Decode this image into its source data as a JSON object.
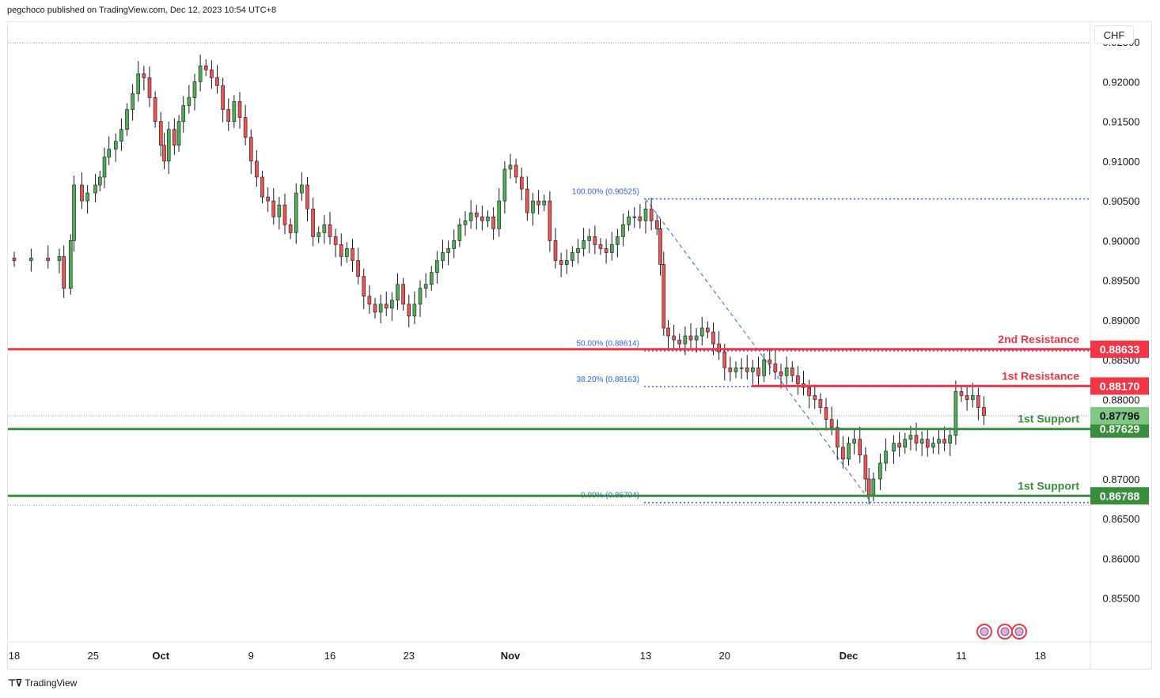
{
  "header": {
    "published": "pegchoco published on TradingView.com, Dec 12, 2023 10:54 UTC+8"
  },
  "currency": "CHF",
  "brand": {
    "label": "TradingView"
  },
  "colors": {
    "up": "#4caf50",
    "down": "#ef5350",
    "resistance": "#f23645",
    "support": "#388e3c",
    "fib": "#2962ff",
    "fibText": "#2962ff",
    "grid": "#e0e3eb",
    "last": "#81c784"
  },
  "chart_data": {
    "type": "candlestick",
    "ylim": [
      0.8495,
      0.9275
    ],
    "y_ticks": [
      "0.92500",
      "0.92000",
      "0.91500",
      "0.91000",
      "0.90500",
      "0.90000",
      "0.89500",
      "0.89000",
      "0.88500",
      "0.88000",
      "0.87000",
      "0.86500",
      "0.86000",
      "0.85500"
    ],
    "x_ticks": [
      {
        "label": "18",
        "day": 0,
        "bold": false
      },
      {
        "label": "25",
        "day": 7,
        "bold": false
      },
      {
        "label": "Oct",
        "day": 13,
        "bold": true
      },
      {
        "label": "9",
        "day": 21,
        "bold": false
      },
      {
        "label": "16",
        "day": 28,
        "bold": false
      },
      {
        "label": "23",
        "day": 35,
        "bold": false
      },
      {
        "label": "Nov",
        "day": 44,
        "bold": true
      },
      {
        "label": "13",
        "day": 56,
        "bold": false
      },
      {
        "label": "20",
        "day": 63,
        "bold": false
      },
      {
        "label": "Dec",
        "day": 74,
        "bold": true
      },
      {
        "label": "11",
        "day": 84,
        "bold": false
      },
      {
        "label": "18",
        "day": 91,
        "bold": false
      }
    ],
    "closes": [
      [
        0,
        0.8975
      ],
      [
        1.5,
        0.8978
      ],
      [
        3,
        0.8975
      ],
      [
        4,
        0.898
      ],
      [
        4.4,
        0.894
      ],
      [
        5,
        0.9
      ],
      [
        5.3,
        0.907
      ],
      [
        6,
        0.905
      ],
      [
        6.5,
        0.906
      ],
      [
        7.2,
        0.907
      ],
      [
        7.6,
        0.908
      ],
      [
        8,
        0.9105
      ],
      [
        8.4,
        0.9115
      ],
      [
        9,
        0.9125
      ],
      [
        9.5,
        0.914
      ],
      [
        10,
        0.9165
      ],
      [
        10.5,
        0.9185
      ],
      [
        11,
        0.921
      ],
      [
        11.5,
        0.9205
      ],
      [
        12,
        0.918
      ],
      [
        12.5,
        0.915
      ],
      [
        13,
        0.912
      ],
      [
        13.3,
        0.91
      ],
      [
        13.7,
        0.914
      ],
      [
        14.2,
        0.912
      ],
      [
        14.6,
        0.915
      ],
      [
        15,
        0.917
      ],
      [
        15.5,
        0.918
      ],
      [
        16,
        0.92
      ],
      [
        16.5,
        0.922
      ],
      [
        17,
        0.9215
      ],
      [
        17.5,
        0.9205
      ],
      [
        18,
        0.9195
      ],
      [
        18.5,
        0.9165
      ],
      [
        19,
        0.915
      ],
      [
        19.5,
        0.9175
      ],
      [
        20,
        0.9155
      ],
      [
        20.5,
        0.913
      ],
      [
        21,
        0.91
      ],
      [
        21.5,
        0.908
      ],
      [
        22,
        0.9055
      ],
      [
        22.5,
        0.905
      ],
      [
        23,
        0.903
      ],
      [
        23.5,
        0.9045
      ],
      [
        24,
        0.902
      ],
      [
        24.5,
        0.901
      ],
      [
        25,
        0.906
      ],
      [
        25.5,
        0.907
      ],
      [
        26,
        0.904
      ],
      [
        26.5,
        0.9005
      ],
      [
        27,
        0.901
      ],
      [
        27.5,
        0.902
      ],
      [
        28,
        0.9005
      ],
      [
        28.5,
        0.8995
      ],
      [
        29,
        0.898
      ],
      [
        29.5,
        0.899
      ],
      [
        30,
        0.8975
      ],
      [
        30.5,
        0.8955
      ],
      [
        31,
        0.893
      ],
      [
        31.5,
        0.892
      ],
      [
        32,
        0.891
      ],
      [
        32.5,
        0.892
      ],
      [
        33,
        0.8915
      ],
      [
        33.5,
        0.8925
      ],
      [
        34,
        0.8945
      ],
      [
        34.5,
        0.892
      ],
      [
        35,
        0.8905
      ],
      [
        35.5,
        0.892
      ],
      [
        36,
        0.894
      ],
      [
        36.5,
        0.8945
      ],
      [
        37,
        0.896
      ],
      [
        37.5,
        0.8975
      ],
      [
        38,
        0.8985
      ],
      [
        38.5,
        0.899
      ],
      [
        39,
        0.9
      ],
      [
        39.5,
        0.902
      ],
      [
        40,
        0.9025
      ],
      [
        40.5,
        0.9035
      ],
      [
        41,
        0.903
      ],
      [
        41.5,
        0.9025
      ],
      [
        42,
        0.903
      ],
      [
        42.5,
        0.9015
      ],
      [
        43,
        0.905
      ],
      [
        43.5,
        0.909
      ],
      [
        44,
        0.9095
      ],
      [
        44.5,
        0.908
      ],
      [
        45,
        0.9065
      ],
      [
        45.5,
        0.9035
      ],
      [
        46,
        0.905
      ],
      [
        46.5,
        0.9045
      ],
      [
        47,
        0.905
      ],
      [
        47.5,
        0.9
      ],
      [
        48,
        0.8975
      ],
      [
        48.5,
        0.897
      ],
      [
        49,
        0.8975
      ],
      [
        49.5,
        0.8985
      ],
      [
        50,
        0.899
      ],
      [
        50.5,
        0.9
      ],
      [
        51,
        0.9005
      ],
      [
        51.5,
        0.8995
      ],
      [
        52,
        0.899
      ],
      [
        52.5,
        0.8985
      ],
      [
        53,
        0.8995
      ],
      [
        53.5,
        0.9005
      ],
      [
        54,
        0.902
      ],
      [
        54.5,
        0.903
      ],
      [
        55,
        0.903
      ],
      [
        55.5,
        0.9025
      ],
      [
        56,
        0.904
      ],
      [
        56.5,
        0.9025
      ],
      [
        57,
        0.9015
      ],
      [
        57.3,
        0.897
      ],
      [
        57.6,
        0.889
      ],
      [
        58,
        0.888
      ],
      [
        58.5,
        0.8875
      ],
      [
        59,
        0.887
      ],
      [
        59.5,
        0.888
      ],
      [
        60,
        0.8875
      ],
      [
        60.5,
        0.888
      ],
      [
        61,
        0.889
      ],
      [
        61.5,
        0.8885
      ],
      [
        62,
        0.887
      ],
      [
        62.5,
        0.886
      ],
      [
        63,
        0.884
      ],
      [
        63.5,
        0.8835
      ],
      [
        64,
        0.884
      ],
      [
        64.5,
        0.884
      ],
      [
        65,
        0.8835
      ],
      [
        65.5,
        0.884
      ],
      [
        66,
        0.883
      ],
      [
        66.5,
        0.885
      ],
      [
        67,
        0.8845
      ],
      [
        67.5,
        0.8835
      ],
      [
        68,
        0.883
      ],
      [
        68.5,
        0.884
      ],
      [
        69,
        0.883
      ],
      [
        69.5,
        0.882
      ],
      [
        70,
        0.8815
      ],
      [
        70.5,
        0.8805
      ],
      [
        71,
        0.88
      ],
      [
        71.5,
        0.879
      ],
      [
        72,
        0.8775
      ],
      [
        72.5,
        0.8765
      ],
      [
        73,
        0.874
      ],
      [
        73.5,
        0.8725
      ],
      [
        74,
        0.8745
      ],
      [
        74.5,
        0.875
      ],
      [
        75,
        0.873
      ],
      [
        75.5,
        0.87
      ],
      [
        75.8,
        0.868
      ],
      [
        76.2,
        0.87
      ],
      [
        76.8,
        0.872
      ],
      [
        77.3,
        0.8735
      ],
      [
        78,
        0.8745
      ],
      [
        78.5,
        0.874
      ],
      [
        79,
        0.875
      ],
      [
        79.5,
        0.8755
      ],
      [
        80,
        0.8745
      ],
      [
        80.5,
        0.875
      ],
      [
        81,
        0.874
      ],
      [
        81.5,
        0.8745
      ],
      [
        82,
        0.875
      ],
      [
        82.5,
        0.8745
      ],
      [
        83,
        0.8755
      ],
      [
        83.5,
        0.881
      ],
      [
        84,
        0.8805
      ],
      [
        84.5,
        0.88
      ],
      [
        85,
        0.8805
      ],
      [
        85.5,
        0.879
      ],
      [
        86,
        0.878
      ]
    ],
    "levels": [
      {
        "name": "2nd Resistance",
        "value": 0.88633,
        "label": "0.88633",
        "color": "#f23645",
        "textColor": "#f23645"
      },
      {
        "name": "1st Resistance",
        "value": 0.8817,
        "label": "0.88170",
        "color": "#f23645",
        "textColor": "#f23645"
      },
      {
        "name": "1st Support",
        "value": 0.87629,
        "label": "0.87629",
        "color": "#388e3c",
        "textColor": "#388e3c"
      },
      {
        "name": "1st Support",
        "value": 0.86788,
        "label": "0.86788",
        "color": "#388e3c",
        "textColor": "#388e3c"
      }
    ],
    "last_price": {
      "value": 0.87796,
      "label": "0.87796"
    },
    "fibs": [
      {
        "label": "100.00% (0.90525)",
        "value": 0.90525
      },
      {
        "label": "50.00% (0.88614)",
        "value": 0.88614
      },
      {
        "label": "38.20% (0.88163)",
        "value": 0.88163
      },
      {
        "label": "0.00% (0.86704)",
        "value": 0.86704
      }
    ],
    "fib_start_day": 56,
    "fib_end_day": 76,
    "top_dotted": 0.9249,
    "bottom_dotted": 0.8667
  }
}
